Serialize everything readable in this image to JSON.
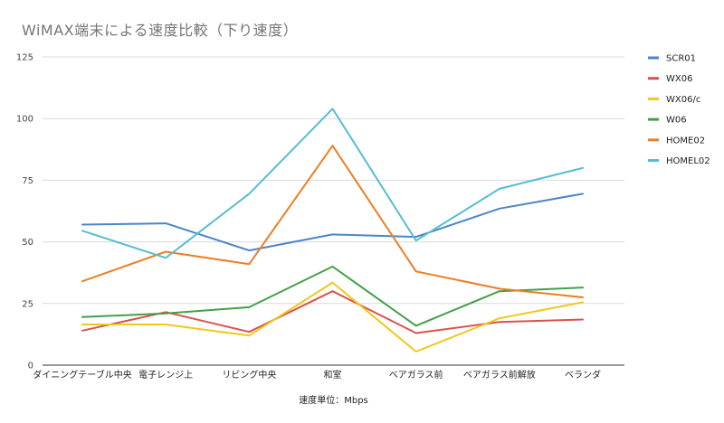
{
  "chart_data": {
    "type": "line",
    "title": "WiMAX端末による速度比較（下り速度）",
    "xlabel": "速度単位：Mbps",
    "ylabel": "",
    "ylim": [
      0,
      125
    ],
    "yticks": [
      0,
      25,
      50,
      75,
      100,
      125
    ],
    "grid": true,
    "legend_position": "right",
    "categories": [
      "ダイニングテーブル中央",
      "電子レンジ上",
      "リビング中央",
      "和室",
      "ベアガラス前",
      "ベアガラス前解放",
      "ベランダ"
    ],
    "series": [
      {
        "name": "SCR01",
        "color": "#4a86c8",
        "values": [
          57,
          57.5,
          46.5,
          53,
          52,
          63.5,
          69.5
        ]
      },
      {
        "name": "WX06",
        "color": "#d9534f",
        "values": [
          14,
          21.5,
          13.5,
          30,
          13,
          17.5,
          18.5
        ]
      },
      {
        "name": "WX06/c",
        "color": "#f2c71b",
        "values": [
          16.5,
          16.5,
          12,
          33.5,
          5.5,
          19,
          25.5
        ]
      },
      {
        "name": "W06",
        "color": "#43a047",
        "values": [
          19.5,
          21,
          23.5,
          40,
          16,
          30,
          31.5
        ]
      },
      {
        "name": "HOME02",
        "color": "#ef7d22",
        "values": [
          34,
          46,
          41,
          89,
          38,
          31,
          27.5
        ]
      },
      {
        "name": "HOMEL02",
        "color": "#55bdd3",
        "values": [
          54.5,
          43.5,
          69.5,
          104,
          50.5,
          71.5,
          80
        ]
      }
    ]
  }
}
